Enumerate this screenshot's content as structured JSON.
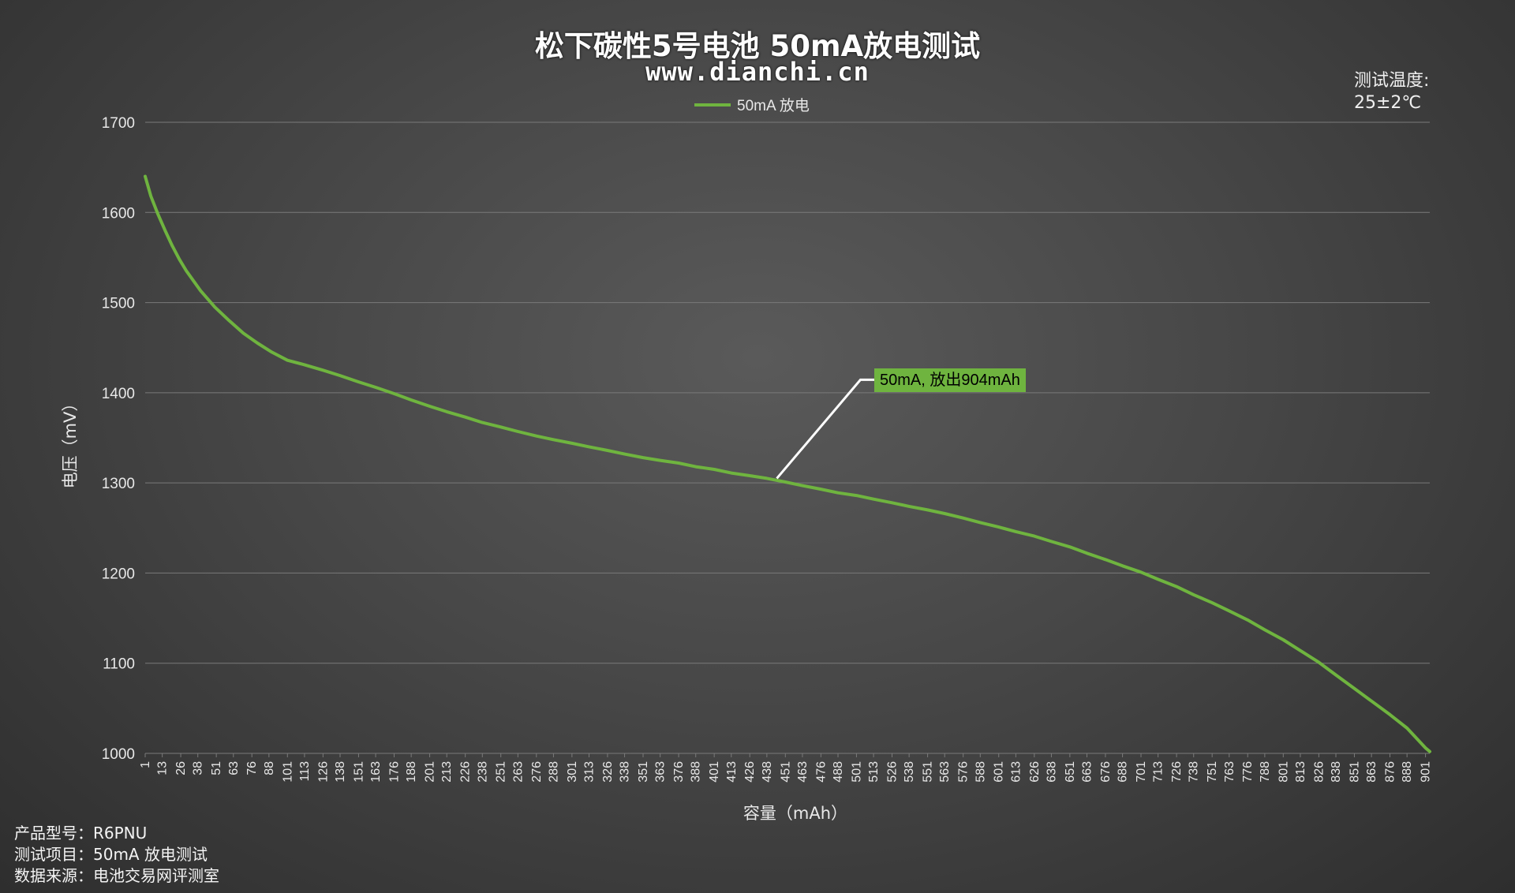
{
  "header": {
    "title": "松下碳性5号电池 50mA放电测试",
    "subtitle": "www.dianchi.cn",
    "temp_label": "测试温度:",
    "temp_value": "25±2℃"
  },
  "footer": {
    "product": "产品型号：R6PNU",
    "test_item": "测试项目：50mA 放电测试",
    "source": "数据来源：电池交易网评测室"
  },
  "colors": {
    "line": "#6fb43f",
    "grid": "#7a7a7a",
    "annotation_bg": "#6fb43f",
    "leader": "#ffffff"
  },
  "chart_data": {
    "type": "line",
    "title": "松下碳性5号电池 50mA放电测试",
    "subtitle": "www.dianchi.cn",
    "xlabel": "容量（mAh）",
    "ylabel": "电压（mV）",
    "ylim": [
      1000,
      1700
    ],
    "yticks": [
      1000,
      1100,
      1200,
      1300,
      1400,
      1500,
      1600,
      1700
    ],
    "xlim": [
      1,
      904
    ],
    "xticks": [
      1,
      13,
      26,
      38,
      51,
      63,
      76,
      88,
      101,
      113,
      126,
      138,
      151,
      163,
      176,
      188,
      201,
      213,
      226,
      238,
      251,
      263,
      276,
      288,
      301,
      313,
      326,
      338,
      351,
      363,
      376,
      388,
      401,
      413,
      426,
      438,
      451,
      463,
      476,
      488,
      501,
      513,
      526,
      538,
      551,
      563,
      576,
      588,
      601,
      613,
      626,
      638,
      651,
      663,
      676,
      688,
      701,
      713,
      726,
      738,
      751,
      763,
      776,
      788,
      801,
      813,
      826,
      838,
      851,
      863,
      876,
      888,
      901
    ],
    "grid": true,
    "legend_position": "top-center",
    "annotation": {
      "text": "50mA, 放出904mAh",
      "x": 445,
      "y": 1305
    },
    "series": [
      {
        "name": "50mA 放电",
        "x": [
          1,
          5,
          10,
          15,
          20,
          25,
          30,
          40,
          50,
          60,
          70,
          80,
          90,
          101,
          113,
          126,
          138,
          151,
          163,
          176,
          188,
          201,
          213,
          226,
          238,
          251,
          263,
          276,
          288,
          301,
          313,
          326,
          338,
          351,
          363,
          376,
          388,
          401,
          413,
          426,
          438,
          451,
          463,
          476,
          488,
          501,
          513,
          526,
          538,
          551,
          563,
          576,
          588,
          601,
          613,
          626,
          638,
          651,
          663,
          676,
          688,
          701,
          713,
          726,
          738,
          751,
          763,
          776,
          788,
          801,
          813,
          826,
          838,
          851,
          863,
          876,
          888,
          901,
          904
        ],
        "y": [
          1640,
          1618,
          1598,
          1580,
          1563,
          1548,
          1535,
          1513,
          1495,
          1480,
          1466,
          1455,
          1445,
          1436,
          1431,
          1425,
          1419,
          1412,
          1406,
          1399,
          1392,
          1385,
          1379,
          1373,
          1367,
          1362,
          1357,
          1352,
          1348,
          1344,
          1340,
          1336,
          1332,
          1328,
          1325,
          1322,
          1318,
          1315,
          1311,
          1308,
          1305,
          1301,
          1297,
          1293,
          1289,
          1286,
          1282,
          1278,
          1274,
          1270,
          1266,
          1261,
          1256,
          1251,
          1246,
          1241,
          1235,
          1229,
          1222,
          1215,
          1208,
          1201,
          1193,
          1185,
          1176,
          1167,
          1158,
          1148,
          1137,
          1126,
          1114,
          1101,
          1087,
          1072,
          1058,
          1043,
          1028,
          1006,
          1002
        ]
      }
    ]
  }
}
